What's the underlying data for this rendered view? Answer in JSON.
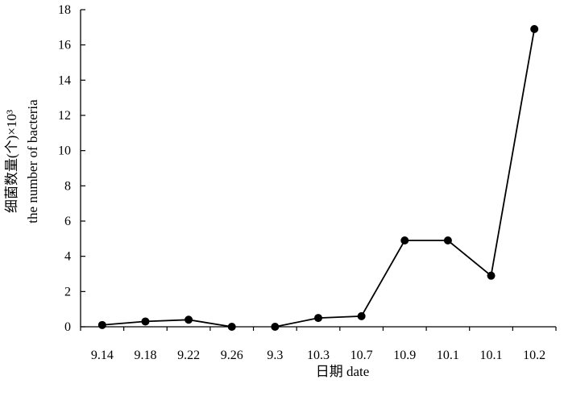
{
  "chart_data": {
    "type": "line",
    "xlabel": "日期 date",
    "ylabel_cn": "细菌数量(个)×10³",
    "ylabel_en": "the number of bacteria",
    "categories": [
      "9.14",
      "9.18",
      "9.22",
      "9.26",
      "9.3",
      "10.3",
      "10.7",
      "10.9",
      "10.1",
      "10.1",
      "10.2"
    ],
    "series": [
      {
        "values": [
          0.1,
          0.3,
          0.4,
          0.0,
          0.0,
          0.5,
          0.6,
          4.9,
          4.9,
          2.9,
          16.9
        ],
        "connected_segments": [
          [
            0,
            3
          ],
          [
            4,
            10
          ]
        ],
        "color": "#000000"
      }
    ],
    "ylim": [
      0,
      18
    ],
    "yticks": [
      "0",
      "2",
      "4",
      "6",
      "8",
      "10",
      "12",
      "14",
      "16",
      "18"
    ],
    "grid": false,
    "legend": "none"
  }
}
